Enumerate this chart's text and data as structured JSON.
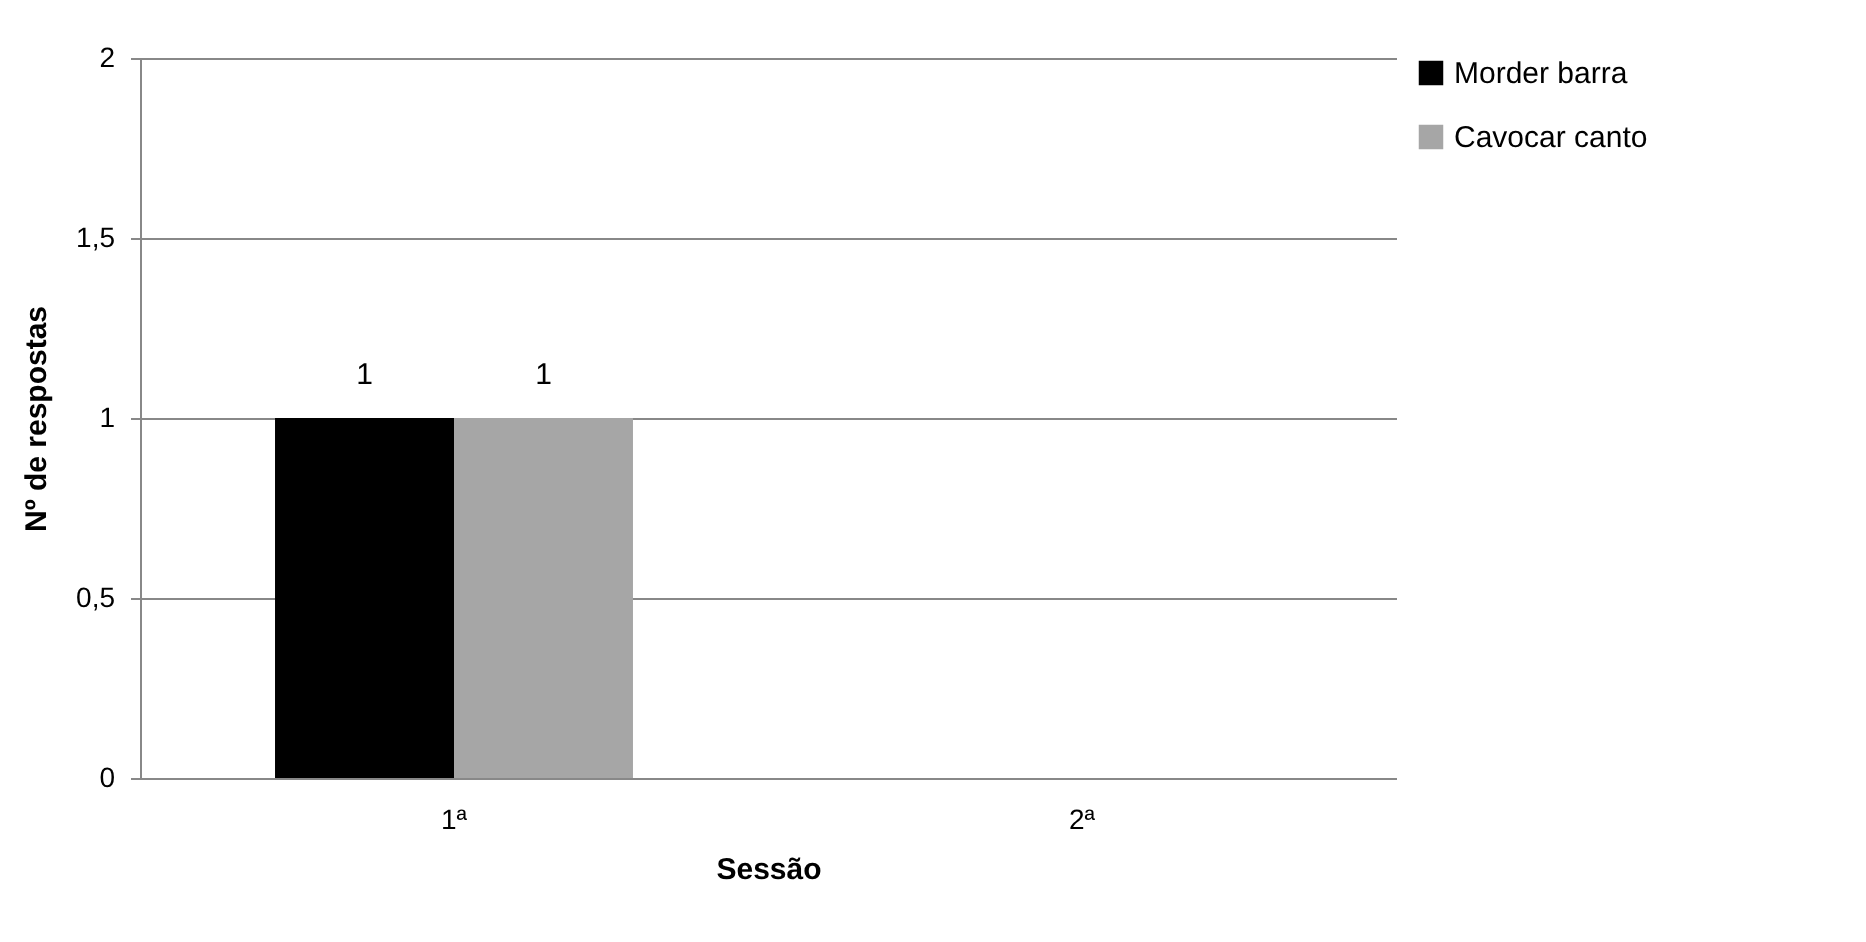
{
  "chart_data": {
    "type": "bar",
    "xlabel": "Sessão",
    "ylabel": "Nº de respostas",
    "categories": [
      "1ª",
      "2ª"
    ],
    "series": [
      {
        "name": "Morder barra",
        "color": "#000000",
        "values": [
          1,
          0
        ],
        "value_labels": [
          "1",
          null
        ]
      },
      {
        "name": "Cavocar canto",
        "color": "#a6a6a6",
        "values": [
          1,
          0
        ],
        "value_labels": [
          "1",
          null
        ]
      }
    ],
    "ylim": [
      0,
      2
    ],
    "yticks": [
      0,
      {
        "value": 0.5,
        "label": "0,5"
      },
      1,
      {
        "value": 1.5,
        "label": "1,5"
      },
      2
    ],
    "grid": "y",
    "legend": "right"
  }
}
